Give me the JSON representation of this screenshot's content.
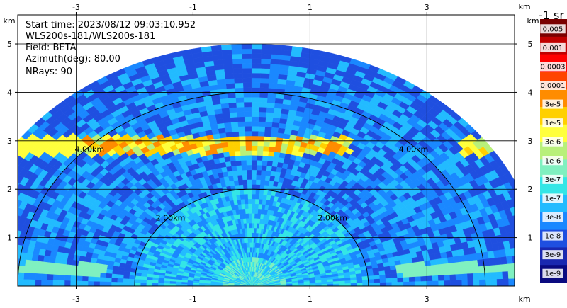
{
  "chart_data": {
    "type": "heatmap",
    "projection": "polar-sector (range-height indicator)",
    "annotations": {
      "start_time": "Start time: 2023/08/12 09:03:10.952",
      "instrument": "WLS200s-181/WLS200s-181",
      "field": "Field: BETA",
      "azimuth": "Azimuth(deg): 80.00",
      "nrays": "NRays: 90"
    },
    "x_unit": "km",
    "y_unit": "km",
    "xlim": [
      -4,
      4.5
    ],
    "ylim": [
      0,
      5.6
    ],
    "x_ticks": [
      {
        "value": -3,
        "label": "-3"
      },
      {
        "value": -1,
        "label": "-1"
      },
      {
        "value": 1,
        "label": "1"
      },
      {
        "value": 3,
        "label": "3"
      }
    ],
    "y_ticks": [
      {
        "value": 1,
        "label": "1"
      },
      {
        "value": 2,
        "label": "2"
      },
      {
        "value": 3,
        "label": "3"
      },
      {
        "value": 4,
        "label": "4"
      },
      {
        "value": 5,
        "label": "5"
      }
    ],
    "grid": true,
    "range_rings": [
      {
        "radius_km": 2.0,
        "label": "2.00km"
      },
      {
        "radius_km": 4.0,
        "label": "4.00km"
      }
    ],
    "max_range_km": 5.0,
    "aerosol_layer_km": 2.9,
    "colorbar": {
      "title": "-1 sr",
      "labels": [
        "0.005",
        "0.001",
        "0.0003",
        "0.0001",
        "3e-5",
        "1e-5",
        "3e-6",
        "1e-6",
        "3e-7",
        "1e-7",
        "3e-8",
        "1e-8",
        "3e-9",
        "1e-9"
      ],
      "colors": [
        "#7a0000",
        "#c00000",
        "#ff0000",
        "#ff4500",
        "#ff8c00",
        "#ffd000",
        "#ffff3c",
        "#b8f07a",
        "#7ff0c0",
        "#33e6e6",
        "#22bbff",
        "#1a88ff",
        "#1f4fe0",
        "#1a28b0",
        "#0a0a80"
      ]
    }
  }
}
